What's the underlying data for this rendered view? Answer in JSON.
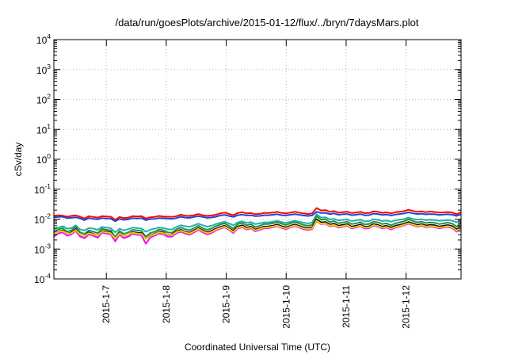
{
  "chart_data": {
    "type": "line",
    "title": "/data/run/goesPlots/archive/2015-01-12/flux/../bryn/7daysMars.plot",
    "xlabel": "Coordinated Universal Time (UTC)",
    "ylabel": "cSv/day",
    "yscale": "log",
    "ylim": [
      0.0001,
      10000
    ],
    "xlim": [
      "2015-01-06 03:00",
      "2015-01-12 22:00"
    ],
    "grid": true,
    "y_ticks": [
      {
        "base": "10",
        "exp": "-4"
      },
      {
        "base": "10",
        "exp": "-3"
      },
      {
        "base": "10",
        "exp": "-2"
      },
      {
        "base": "10",
        "exp": "-1"
      },
      {
        "base": "10",
        "exp": "0"
      },
      {
        "base": "10",
        "exp": "1"
      },
      {
        "base": "10",
        "exp": "2"
      },
      {
        "base": "10",
        "exp": "3"
      },
      {
        "base": "10",
        "exp": "4"
      }
    ],
    "x_ticks": [
      {
        "label": "2015-1-7",
        "t": "2015-01-07 00:00"
      },
      {
        "label": "2015-1-8",
        "t": "2015-01-08 00:00"
      },
      {
        "label": "2015-1-9",
        "t": "2015-01-09 00:00"
      },
      {
        "label": "2015-1-10",
        "t": "2015-01-10 00:00"
      },
      {
        "label": "2015-1-11",
        "t": "2015-01-11 00:00"
      },
      {
        "label": "2015-1-12",
        "t": "2015-01-12 00:00"
      }
    ],
    "series": [
      {
        "color": "#ff0000",
        "values": [
          0.013,
          0.0135,
          0.013,
          0.012,
          0.0128,
          0.0133,
          0.012,
          0.0105,
          0.0125,
          0.0118,
          0.0112,
          0.0125,
          0.0122,
          0.012,
          0.0095,
          0.0118,
          0.0108,
          0.0112,
          0.0125,
          0.0122,
          0.0125,
          0.0105,
          0.0115,
          0.0118,
          0.0128,
          0.0122,
          0.012,
          0.0118,
          0.0125,
          0.014,
          0.013,
          0.0128,
          0.0135,
          0.0148,
          0.0135,
          0.0128,
          0.0132,
          0.014,
          0.0155,
          0.0165,
          0.015,
          0.0135,
          0.016,
          0.017,
          0.0155,
          0.016,
          0.0145,
          0.015,
          0.016,
          0.016,
          0.0165,
          0.0175,
          0.016,
          0.0155,
          0.0165,
          0.0175,
          0.0165,
          0.0155,
          0.0148,
          0.0155,
          0.0235,
          0.0195,
          0.02,
          0.0175,
          0.0185,
          0.0165,
          0.017,
          0.0175,
          0.016,
          0.0165,
          0.0175,
          0.0158,
          0.016,
          0.0182,
          0.0175,
          0.0162,
          0.0168,
          0.0155,
          0.017,
          0.0175,
          0.0185,
          0.0205,
          0.0188,
          0.0175,
          0.0182,
          0.017,
          0.0178,
          0.0172,
          0.0165,
          0.0168,
          0.0172,
          0.0165,
          0.0145,
          0.017
        ]
      },
      {
        "color": "#1e46d2",
        "values": [
          0.0115,
          0.0118,
          0.012,
          0.0108,
          0.011,
          0.0115,
          0.0105,
          0.0092,
          0.0108,
          0.0102,
          0.0098,
          0.0108,
          0.0105,
          0.0104,
          0.0085,
          0.0102,
          0.0094,
          0.0098,
          0.0108,
          0.0105,
          0.0108,
          0.0092,
          0.01,
          0.0102,
          0.0108,
          0.0106,
          0.0104,
          0.0102,
          0.0108,
          0.012,
          0.0112,
          0.011,
          0.0118,
          0.0125,
          0.0118,
          0.011,
          0.0114,
          0.012,
          0.0132,
          0.0138,
          0.0128,
          0.0118,
          0.0135,
          0.0142,
          0.0132,
          0.0135,
          0.0125,
          0.0128,
          0.0135,
          0.0135,
          0.014,
          0.0146,
          0.0135,
          0.0132,
          0.014,
          0.0146,
          0.014,
          0.0132,
          0.0128,
          0.0132,
          0.0175,
          0.016,
          0.0162,
          0.0148,
          0.0155,
          0.014,
          0.0145,
          0.0148,
          0.0136,
          0.014,
          0.0148,
          0.0134,
          0.0136,
          0.0152,
          0.0148,
          0.0138,
          0.0142,
          0.0132,
          0.0142,
          0.0148,
          0.0155,
          0.0168,
          0.0156,
          0.0148,
          0.0152,
          0.0144,
          0.0148,
          0.0145,
          0.0138,
          0.0142,
          0.0145,
          0.014,
          0.0128,
          0.0145
        ]
      },
      {
        "color": "#20b2aa",
        "values": [
          0.0045,
          0.0052,
          0.0058,
          0.0048,
          0.005,
          0.0062,
          0.0045,
          0.0042,
          0.005,
          0.0048,
          0.0044,
          0.0055,
          0.0052,
          0.005,
          0.0036,
          0.0048,
          0.0042,
          0.0046,
          0.0052,
          0.005,
          0.0048,
          0.0038,
          0.0044,
          0.0048,
          0.0052,
          0.005,
          0.0046,
          0.0045,
          0.0055,
          0.0062,
          0.0058,
          0.0055,
          0.0062,
          0.007,
          0.0062,
          0.0056,
          0.006,
          0.0068,
          0.0075,
          0.0082,
          0.0072,
          0.0062,
          0.0078,
          0.0085,
          0.0075,
          0.008,
          0.0068,
          0.0072,
          0.0078,
          0.0078,
          0.0082,
          0.0088,
          0.008,
          0.0075,
          0.0082,
          0.0088,
          0.0082,
          0.0076,
          0.0072,
          0.0076,
          0.0145,
          0.0112,
          0.0115,
          0.0098,
          0.0102,
          0.009,
          0.0094,
          0.0098,
          0.0086,
          0.009,
          0.0096,
          0.0084,
          0.0086,
          0.0098,
          0.0094,
          0.0086,
          0.009,
          0.0082,
          0.009,
          0.0095,
          0.01,
          0.0112,
          0.0102,
          0.0095,
          0.0098,
          0.0092,
          0.0095,
          0.0092,
          0.0088,
          0.009,
          0.0093,
          0.0088,
          0.0078,
          0.0092
        ]
      },
      {
        "color": "#2a8a4a",
        "values": [
          0.0036,
          0.0045,
          0.005,
          0.0038,
          0.0042,
          0.0055,
          0.0036,
          0.0032,
          0.0042,
          0.0038,
          0.0034,
          0.0048,
          0.0044,
          0.0042,
          0.0025,
          0.004,
          0.0032,
          0.0036,
          0.0044,
          0.0042,
          0.004,
          0.0026,
          0.0034,
          0.0038,
          0.0045,
          0.0042,
          0.0036,
          0.0035,
          0.0046,
          0.0052,
          0.0046,
          0.0042,
          0.005,
          0.006,
          0.005,
          0.0044,
          0.0048,
          0.0058,
          0.0066,
          0.0072,
          0.006,
          0.0048,
          0.0068,
          0.0074,
          0.0062,
          0.0068,
          0.0054,
          0.006,
          0.0068,
          0.0068,
          0.0072,
          0.008,
          0.007,
          0.0064,
          0.0072,
          0.008,
          0.0072,
          0.0064,
          0.006,
          0.0064,
          0.0125,
          0.0095,
          0.0098,
          0.008,
          0.0086,
          0.0072,
          0.0077,
          0.0082,
          0.0068,
          0.0072,
          0.008,
          0.0066,
          0.0069,
          0.0082,
          0.0078,
          0.0068,
          0.0072,
          0.0062,
          0.0072,
          0.0078,
          0.0085,
          0.0098,
          0.0087,
          0.0078,
          0.0082,
          0.0074,
          0.0078,
          0.0075,
          0.0068,
          0.0072,
          0.0076,
          0.007,
          0.0056,
          0.0074
        ]
      },
      {
        "color": "#000000",
        "values": [
          0.003,
          0.0038,
          0.0042,
          0.0032,
          0.0036,
          0.0046,
          0.003,
          0.0027,
          0.0036,
          0.0032,
          0.0028,
          0.004,
          0.0038,
          0.0036,
          0.0021,
          0.0034,
          0.0027,
          0.003,
          0.0037,
          0.0035,
          0.0034,
          0.0022,
          0.0028,
          0.0032,
          0.0038,
          0.0036,
          0.003,
          0.003,
          0.0039,
          0.0044,
          0.0038,
          0.0035,
          0.0042,
          0.005,
          0.0042,
          0.0036,
          0.004,
          0.0048,
          0.0055,
          0.006,
          0.005,
          0.004,
          0.0056,
          0.0062,
          0.0052,
          0.0056,
          0.0045,
          0.005,
          0.0056,
          0.0057,
          0.006,
          0.0066,
          0.0058,
          0.0053,
          0.006,
          0.0066,
          0.006,
          0.0053,
          0.005,
          0.0053,
          0.0098,
          0.0078,
          0.008,
          0.0066,
          0.007,
          0.006,
          0.0064,
          0.0068,
          0.0056,
          0.006,
          0.0066,
          0.0055,
          0.0057,
          0.0068,
          0.0064,
          0.0056,
          0.006,
          0.0052,
          0.006,
          0.0064,
          0.007,
          0.008,
          0.0072,
          0.0064,
          0.0068,
          0.0061,
          0.0064,
          0.0062,
          0.0056,
          0.006,
          0.0063,
          0.0058,
          0.0045,
          0.006
        ]
      },
      {
        "color": "#ff00ff",
        "values": [
          0.0026,
          0.0033,
          0.0036,
          0.0028,
          0.0031,
          0.004,
          0.0026,
          0.0023,
          0.0031,
          0.0028,
          0.0024,
          0.0035,
          0.0033,
          0.0031,
          0.0018,
          0.003,
          0.0023,
          0.0026,
          0.0032,
          0.003,
          0.0029,
          0.0015,
          0.0024,
          0.0028,
          0.0033,
          0.0031,
          0.0026,
          0.0026,
          0.0034,
          0.0038,
          0.0033,
          0.003,
          0.0036,
          0.0044,
          0.0036,
          0.0031,
          0.0034,
          0.0042,
          0.0048,
          0.0053,
          0.0044,
          0.0034,
          0.0049,
          0.0054,
          0.0045,
          0.0049,
          0.0039,
          0.0044,
          0.0049,
          0.005,
          0.0053,
          0.0058,
          0.0051,
          0.0046,
          0.0053,
          0.0058,
          0.0053,
          0.0046,
          0.0044,
          0.0046,
          0.0085,
          0.0068,
          0.007,
          0.0058,
          0.0061,
          0.0052,
          0.0056,
          0.006,
          0.0049,
          0.0052,
          0.0058,
          0.0048,
          0.005,
          0.006,
          0.0056,
          0.0049,
          0.0052,
          0.0045,
          0.0052,
          0.0056,
          0.0062,
          0.007,
          0.0063,
          0.0056,
          0.006,
          0.0053,
          0.0056,
          0.0054,
          0.0049,
          0.0052,
          0.0055,
          0.005,
          0.0038,
          0.0052
        ]
      },
      {
        "color": "#e8d000",
        "values": [
          0.0031,
          0.0037,
          0.004,
          0.0032,
          0.0034,
          0.0043,
          0.003,
          0.0027,
          0.0034,
          0.0031,
          0.0028,
          0.0038,
          0.0036,
          0.0034,
          0.0022,
          0.0033,
          0.0027,
          0.003,
          0.0035,
          0.0033,
          0.0032,
          0.0022,
          0.0027,
          0.0031,
          0.0036,
          0.0034,
          0.003,
          0.0029,
          0.0037,
          0.0041,
          0.0036,
          0.0033,
          0.0039,
          0.0047,
          0.0039,
          0.0034,
          0.0037,
          0.0045,
          0.0051,
          0.0056,
          0.0047,
          0.0037,
          0.0052,
          0.0057,
          0.0048,
          0.0052,
          0.0042,
          0.0047,
          0.0052,
          0.0053,
          0.0056,
          0.0061,
          0.0054,
          0.0049,
          0.0056,
          0.0061,
          0.0056,
          0.0049,
          0.0047,
          0.0049,
          0.0088,
          0.0071,
          0.0073,
          0.0061,
          0.0064,
          0.0055,
          0.0059,
          0.0063,
          0.0052,
          0.0055,
          0.0061,
          0.0051,
          0.0053,
          0.0063,
          0.0059,
          0.0052,
          0.0055,
          0.0048,
          0.0055,
          0.0059,
          0.0065,
          0.0073,
          0.0066,
          0.0059,
          0.0063,
          0.0056,
          0.0059,
          0.0057,
          0.0052,
          0.0055,
          0.0058,
          0.0053,
          0.0041,
          0.0055
        ]
      }
    ]
  }
}
